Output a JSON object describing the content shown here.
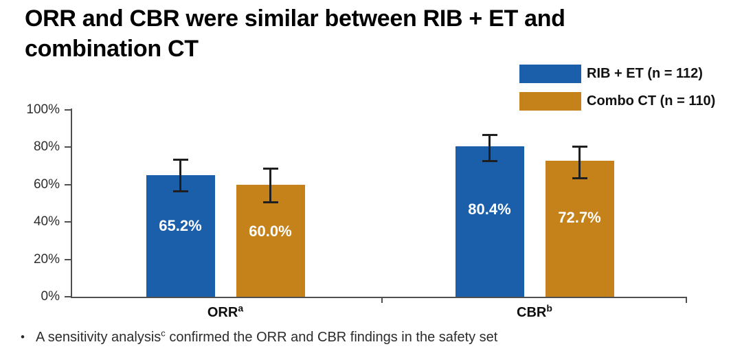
{
  "header": {
    "title_lines": [
      "ORR and CBR were similar between RIB + ET and",
      "combination CT"
    ]
  },
  "legend": {
    "items": [
      {
        "label": "RIB + ET (n = 112)",
        "color": "#1B5FAB"
      },
      {
        "label": "Combo CT (n = 110)",
        "color": "#C5821A"
      }
    ]
  },
  "chart_data": {
    "type": "bar",
    "title": "",
    "categories": [
      "ORR",
      "CBR"
    ],
    "category_superscripts": [
      "a",
      "b"
    ],
    "series": [
      {
        "name": "RIB + ET (n = 112)",
        "color": "#1B5FAB",
        "values": [
          65.2,
          80.4
        ],
        "value_labels": [
          "65.2%",
          "80.4%"
        ],
        "error_low": [
          56,
          72
        ],
        "error_high": [
          74,
          87
        ]
      },
      {
        "name": "Combo CT (n = 110)",
        "color": "#C5821A",
        "values": [
          60.0,
          72.7
        ],
        "value_labels": [
          "60.0%",
          "72.7%"
        ],
        "error_low": [
          50,
          63
        ],
        "error_high": [
          69,
          81
        ]
      }
    ],
    "xlabel": "",
    "ylabel": "",
    "ylim": [
      0,
      100
    ],
    "yticks": [
      {
        "value": 0,
        "label": "0%"
      },
      {
        "value": 20,
        "label": "20%"
      },
      {
        "value": 40,
        "label": "40%"
      },
      {
        "value": 60,
        "label": "60%"
      },
      {
        "value": 80,
        "label": "80%"
      },
      {
        "value": 100,
        "label": "100%"
      }
    ],
    "grid": false,
    "legend_position": "top-right",
    "error_bars": true,
    "axis_color": "#4f4f4f",
    "error_bar_color": "#1f1f1f",
    "value_label_color": "#FFFFFF"
  },
  "footnote": {
    "bullet": "•",
    "pre": "A sensitivity analysis",
    "sup": "c",
    "post": " confirmed the ORR and CBR findings in the safety set"
  }
}
